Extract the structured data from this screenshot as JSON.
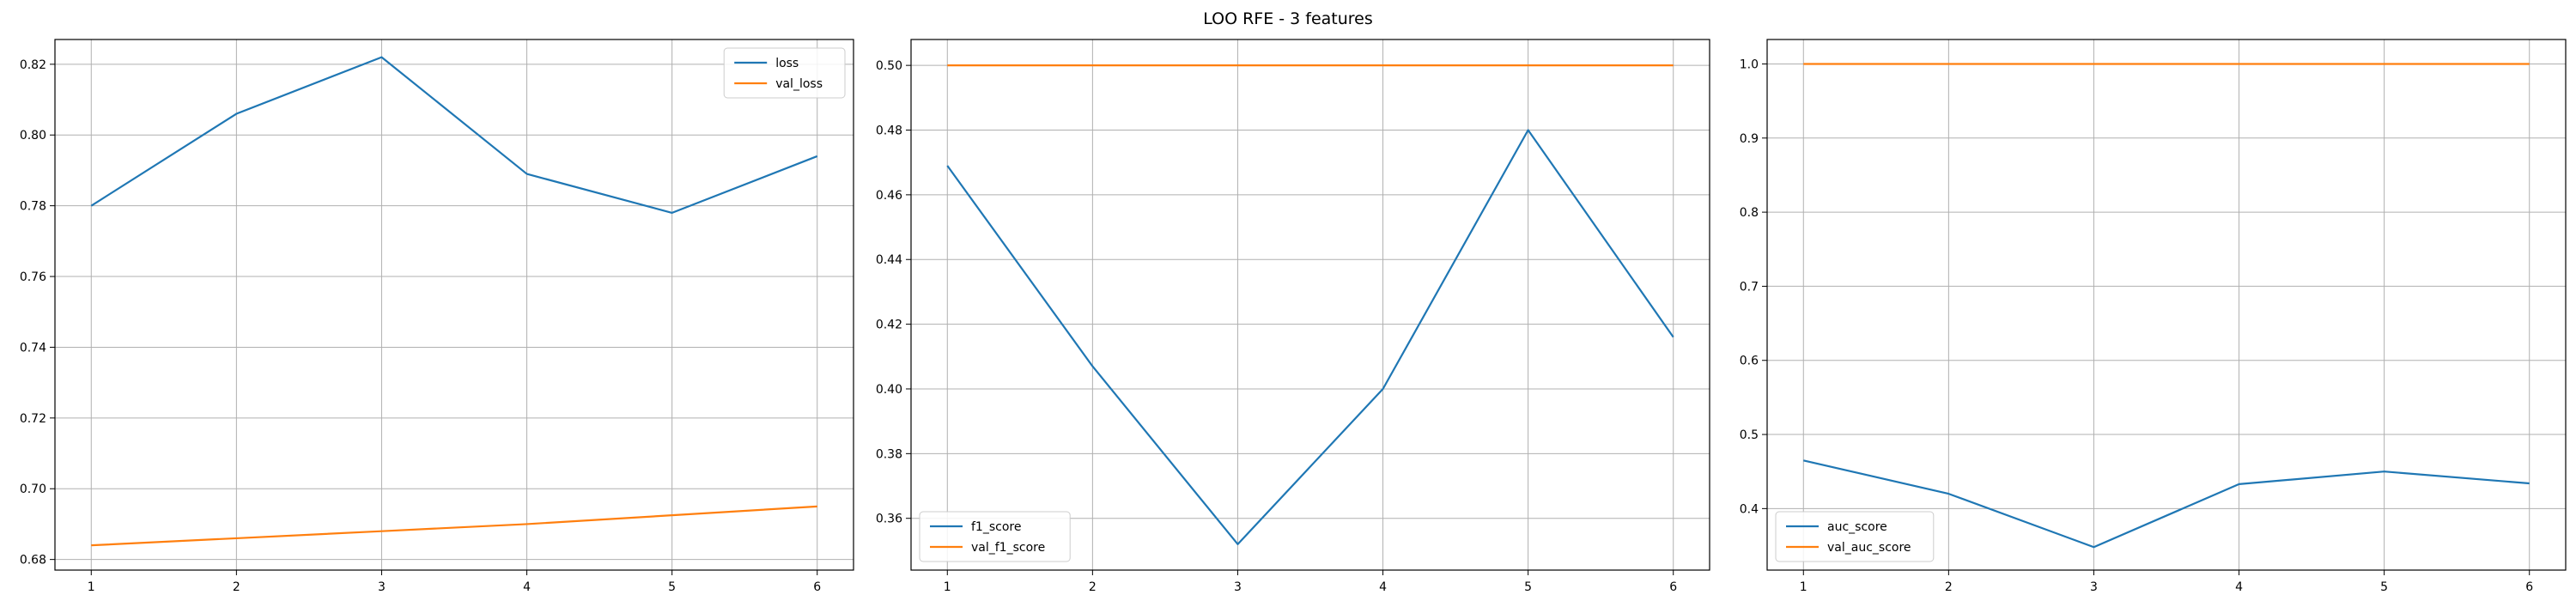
{
  "figure": {
    "suptitle": "LOO RFE - 3 features"
  },
  "chart_data": [
    {
      "type": "line",
      "x": [
        1,
        2,
        3,
        4,
        5,
        6
      ],
      "xticks": [
        1,
        2,
        3,
        4,
        5,
        6
      ],
      "xlim": [
        0.75,
        6.25
      ],
      "ylim": [
        0.677,
        0.827
      ],
      "yticks": [
        0.68,
        0.7,
        0.72,
        0.74,
        0.76,
        0.78,
        0.8,
        0.82
      ],
      "ytick_decimals": 2,
      "grid": true,
      "legend_placement": "upper right",
      "series": [
        {
          "name": "loss",
          "color": "#1f77b4",
          "values": [
            0.78,
            0.806,
            0.822,
            0.789,
            0.778,
            0.794
          ]
        },
        {
          "name": "val_loss",
          "color": "#ff7f0e",
          "values": [
            0.684,
            0.686,
            0.688,
            0.69,
            0.6925,
            0.695
          ]
        }
      ]
    },
    {
      "type": "line",
      "x": [
        1,
        2,
        3,
        4,
        5,
        6
      ],
      "xticks": [
        1,
        2,
        3,
        4,
        5,
        6
      ],
      "xlim": [
        0.75,
        6.25
      ],
      "ylim": [
        0.344,
        0.508
      ],
      "yticks": [
        0.36,
        0.38,
        0.4,
        0.42,
        0.44,
        0.46,
        0.48,
        0.5
      ],
      "ytick_decimals": 2,
      "grid": true,
      "legend_placement": "lower left",
      "series": [
        {
          "name": "f1_score",
          "color": "#1f77b4",
          "values": [
            0.469,
            0.407,
            0.352,
            0.4,
            0.48,
            0.416
          ]
        },
        {
          "name": "val_f1_score",
          "color": "#ff7f0e",
          "values": [
            0.5,
            0.5,
            0.5,
            0.5,
            0.5,
            0.5
          ]
        }
      ]
    },
    {
      "type": "line",
      "x": [
        1,
        2,
        3,
        4,
        5,
        6
      ],
      "xticks": [
        1,
        2,
        3,
        4,
        5,
        6
      ],
      "xlim": [
        0.75,
        6.25
      ],
      "ylim": [
        0.317,
        1.033
      ],
      "yticks": [
        0.4,
        0.5,
        0.6,
        0.7,
        0.8,
        0.9,
        1.0
      ],
      "ytick_decimals": 1,
      "grid": true,
      "legend_placement": "lower left",
      "series": [
        {
          "name": "auc_score",
          "color": "#1f77b4",
          "values": [
            0.465,
            0.42,
            0.348,
            0.433,
            0.45,
            0.434
          ]
        },
        {
          "name": "val_auc_score",
          "color": "#ff7f0e",
          "values": [
            1.0,
            1.0,
            1.0,
            1.0,
            1.0,
            1.0
          ]
        }
      ]
    }
  ]
}
